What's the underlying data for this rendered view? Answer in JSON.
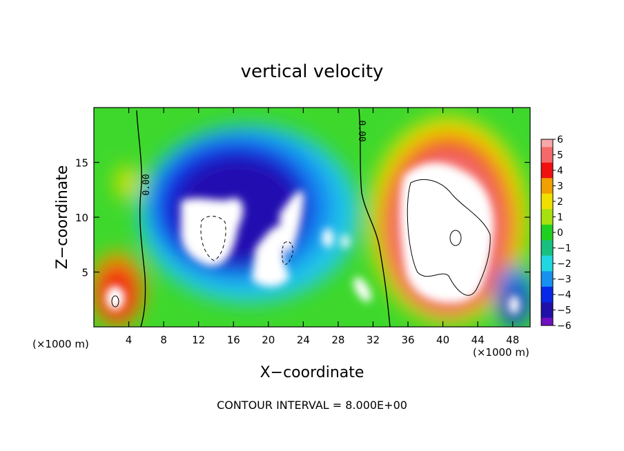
{
  "chart_data": {
    "type": "heatmap",
    "title": "vertical velocity",
    "xlabel": "X−coordinate",
    "ylabel": "Z−coordinate",
    "x_unit": "(×1000 m)",
    "x_ticks": [
      4,
      8,
      12,
      16,
      20,
      24,
      28,
      32,
      36,
      40,
      44,
      48
    ],
    "y_ticks": [
      5,
      10,
      15
    ],
    "xlim": [
      0,
      50
    ],
    "ylim": [
      0,
      20
    ],
    "colorbar": {
      "range": [
        -6,
        6
      ],
      "ticks": [
        "6",
        "5",
        "4",
        "3",
        "2",
        "1",
        "0",
        "−1",
        "−2",
        "−3",
        "−4",
        "−5",
        "−6"
      ],
      "colors": [
        "#f8a8a8",
        "#f46a6a",
        "#f01010",
        "#f0a000",
        "#f0e000",
        "#a8e010",
        "#20d020",
        "#18c080",
        "#20d8e0",
        "#1890f0",
        "#0828e8",
        "#2010a8",
        "#7010c0"
      ],
      "saturation_color": "#ffffff"
    },
    "contour_labels": [
      "0.00",
      "0.00"
    ],
    "contour_interval_note": "CONTOUR INTERVAL = 8.000E+00",
    "features": [
      {
        "name": "updraft core",
        "sign": "positive",
        "x": 41,
        "z": 9,
        "peak": "> 6"
      },
      {
        "name": "downdraft core left",
        "sign": "negative",
        "x": 13,
        "z": 9,
        "peak": "< -6"
      },
      {
        "name": "downdraft core center",
        "sign": "negative",
        "x": 21,
        "z": 6,
        "peak": "< -6"
      },
      {
        "name": "surface updraft left",
        "sign": "positive",
        "x": 2.5,
        "z": 3,
        "peak": "> 6"
      },
      {
        "name": "surface downdraft right",
        "sign": "negative",
        "x": 48,
        "z": 2,
        "peak": "< -6"
      }
    ]
  }
}
